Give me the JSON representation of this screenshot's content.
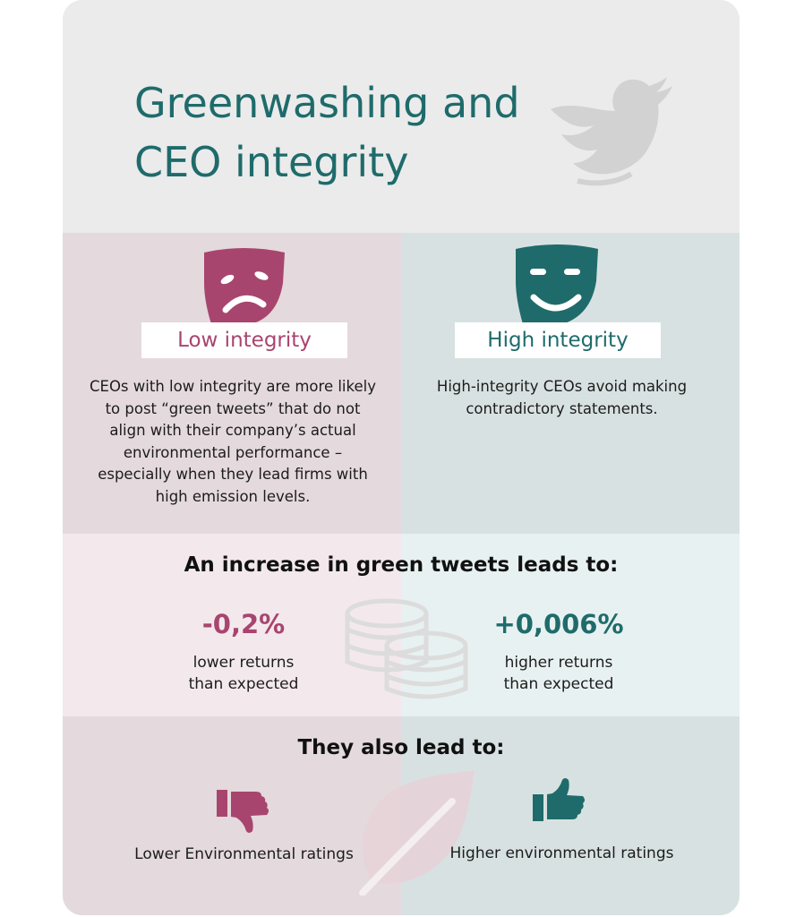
{
  "title": {
    "line1": "Greenwashing and",
    "line2": "CEO integrity"
  },
  "icons": {
    "header": "twitter-bird-icon",
    "low": "sad-mask-icon",
    "high": "happy-mask-icon",
    "middle": "coins-icon",
    "bottom": "leaf-icon",
    "low_rating": "thumbs-down-icon",
    "high_rating": "thumbs-up-icon"
  },
  "colors": {
    "low_accent": "#a8456e",
    "high_accent": "#1f6b6b",
    "header_bg": "#ebebeb",
    "low_bg": "#e4d9dc",
    "high_bg": "#d8e1e1"
  },
  "low": {
    "label": "Low integrity",
    "description": "CEOs with low integrity are more likely to post “green tweets” that do not align with their company’s actual environmental performance – especially when they lead firms with high emission levels."
  },
  "high": {
    "label": "High integrity",
    "description": "High-integrity CEOs avoid making contradictory statements."
  },
  "increase": {
    "heading": "An increase in green tweets leads to:",
    "low_value": "-0,2%",
    "low_caption_1": "lower returns",
    "low_caption_2": "than expected",
    "high_value": "+0,006%",
    "high_caption_1": "higher returns",
    "high_caption_2": "than expected"
  },
  "also": {
    "heading": "They also lead to:",
    "low_rating": "Lower Environmental ratings",
    "high_rating": "Higher environmental ratings"
  }
}
